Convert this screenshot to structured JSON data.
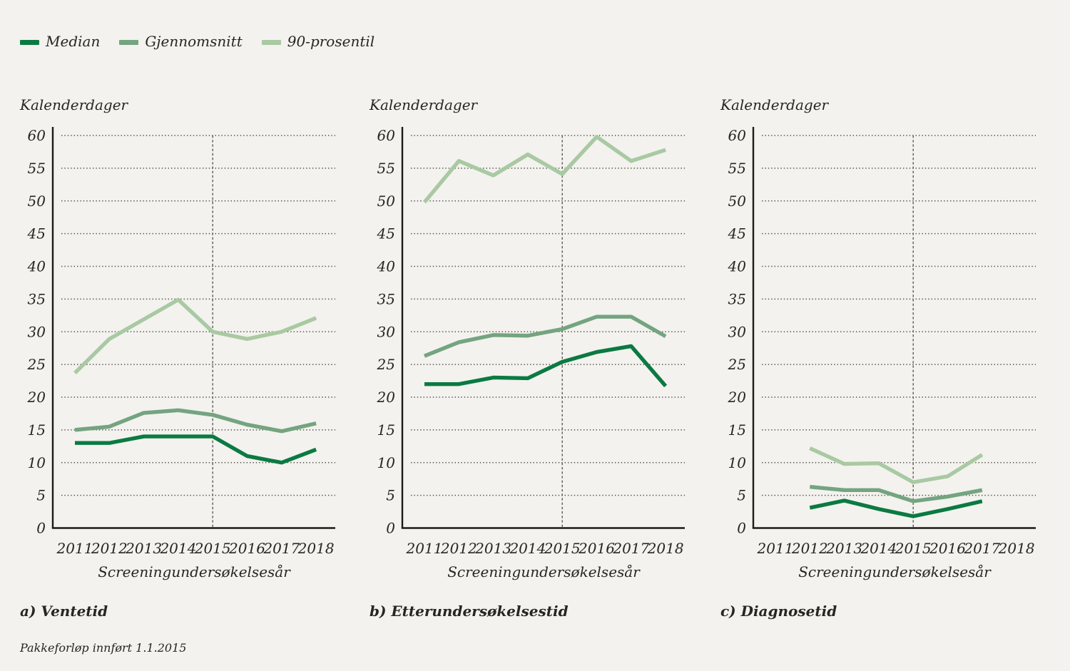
{
  "page": {
    "background": "#f3f2ee",
    "text_color": "#272620",
    "axis_color": "#1b1b19",
    "grid_color": "#53514b"
  },
  "legend": {
    "items": [
      {
        "label": "Median",
        "color": "#0b7a42"
      },
      {
        "label": "Gjennomsnitt",
        "color": "#74a480"
      },
      {
        "label": "90-prosentil",
        "color": "#a9c9a3"
      }
    ]
  },
  "footnote": "Pakkeforløp innført 1.1.2015",
  "chart_data": [
    {
      "type": "line",
      "panel_label": "a) Ventetid",
      "ylabel": "Kalenderdager",
      "xlabel": "Screeningundersøkelsesår",
      "categories": [
        "2011",
        "2012",
        "2013",
        "2014",
        "2015",
        "2016",
        "2017",
        "2018"
      ],
      "ylim": [
        0,
        60
      ],
      "yticks": [
        0,
        5,
        10,
        15,
        20,
        25,
        30,
        35,
        40,
        45,
        50,
        55,
        60
      ],
      "grid": "dotted-horizontal",
      "legend_position": "top-left-of-figure",
      "vline_category": "2015",
      "series": [
        {
          "name": "Median",
          "color": "#0b7a42",
          "values": [
            13,
            13,
            14,
            14,
            14,
            11,
            10,
            12
          ]
        },
        {
          "name": "Gjennomsnitt",
          "color": "#74a480",
          "values": [
            15,
            15.5,
            17.6,
            18,
            17.3,
            15.8,
            14.8,
            16
          ]
        },
        {
          "name": "90-prosentil",
          "color": "#a9c9a3",
          "values": [
            23.7,
            28.9,
            31.9,
            34.9,
            30,
            28.9,
            30,
            32.1
          ]
        }
      ]
    },
    {
      "type": "line",
      "panel_label": "b) Etterundersøkelsestid",
      "ylabel": "Kalenderdager",
      "xlabel": "Screeningundersøkelsesår",
      "categories": [
        "2011",
        "2012",
        "2013",
        "2014",
        "2015",
        "2016",
        "2017",
        "2018"
      ],
      "ylim": [
        0,
        60
      ],
      "yticks": [
        0,
        5,
        10,
        15,
        20,
        25,
        30,
        35,
        40,
        45,
        50,
        55,
        60
      ],
      "grid": "dotted-horizontal",
      "legend_position": "top-left-of-figure",
      "vline_category": "2015",
      "series": [
        {
          "name": "Median",
          "color": "#0b7a42",
          "values": [
            22,
            22,
            23,
            22.9,
            25.4,
            26.9,
            27.8,
            21.7
          ]
        },
        {
          "name": "Gjennomsnitt",
          "color": "#74a480",
          "values": [
            26.3,
            28.4,
            29.5,
            29.4,
            30.4,
            32.3,
            32.3,
            29.3
          ]
        },
        {
          "name": "90-prosentil",
          "color": "#a9c9a3",
          "values": [
            49.8,
            56.1,
            53.9,
            57.1,
            54.1,
            59.8,
            56.1,
            57.8
          ]
        }
      ]
    },
    {
      "type": "line",
      "panel_label": "c) Diagnosetid",
      "ylabel": "Kalenderdager",
      "xlabel": "Screeningundersøkelsesår",
      "categories": [
        "2011",
        "2012",
        "2013",
        "2014",
        "2015",
        "2016",
        "2017",
        "2018"
      ],
      "ylim": [
        0,
        60
      ],
      "yticks": [
        0,
        5,
        10,
        15,
        20,
        25,
        30,
        35,
        40,
        45,
        50,
        55,
        60
      ],
      "grid": "dotted-horizontal",
      "legend_position": "top-left-of-figure",
      "vline_category": "2015",
      "series": [
        {
          "name": "Median",
          "color": "#0b7a42",
          "values": [
            null,
            3.1,
            4.2,
            2.9,
            1.8,
            2.9,
            4.1,
            null
          ]
        },
        {
          "name": "Gjennomsnitt",
          "color": "#74a480",
          "values": [
            null,
            6.3,
            5.8,
            5.8,
            4.1,
            4.8,
            5.8,
            null
          ]
        },
        {
          "name": "90-prosentil",
          "color": "#a9c9a3",
          "values": [
            null,
            12.2,
            9.8,
            9.9,
            7,
            7.9,
            11.2,
            null
          ]
        }
      ]
    }
  ]
}
